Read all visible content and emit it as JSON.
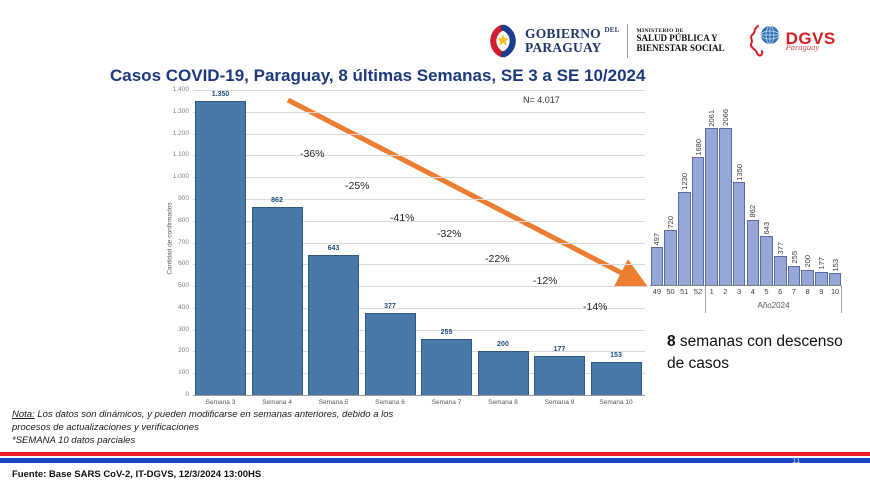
{
  "header": {
    "gobierno": {
      "line1": "GOBIERNO",
      "line1_suffix": "DEL",
      "line2": "PARAGUAY"
    },
    "ministerio": {
      "small": "MINISTERIO DE",
      "line1": "SALUD PÚBLICA Y",
      "line2": "BIENESTAR SOCIAL"
    },
    "dgvs": {
      "acronym": "DGVS",
      "script": "Paraguay"
    }
  },
  "title": "Casos COVID-19, Paraguay, 8 últimas Semanas, SE 3 a SE 10/2024",
  "chart_data": [
    {
      "type": "bar",
      "n_label": "N= 4.017",
      "ylabel": "Cantidad de confirmados",
      "categories": [
        "Semana 3",
        "Semana 4",
        "Semana 5",
        "Semana 6",
        "Semana 7",
        "Semana 8",
        "Semana 9",
        "Semana 10"
      ],
      "values": [
        1350,
        862,
        643,
        377,
        255,
        200,
        177,
        153
      ],
      "bar_labels": [
        "1.350",
        "862",
        "643",
        "377",
        "255",
        "200",
        "177",
        "153"
      ],
      "ylim": [
        0,
        1400
      ],
      "yticks": [
        "1.400",
        "1.300",
        "1.200",
        "1.100",
        "1.000",
        "900",
        "800",
        "700",
        "600",
        "500",
        "400",
        "300",
        "200",
        "100",
        "0"
      ],
      "grid": true,
      "pct_annotations": [
        "-36%",
        "-25%",
        "-41%",
        "-32%",
        "-22%",
        "-12%",
        "-14%"
      ],
      "trend_arrow": "down"
    },
    {
      "type": "bar",
      "categories": [
        "49",
        "50",
        "51",
        "52",
        "1",
        "2",
        "3",
        "4",
        "5",
        "6",
        "7",
        "8",
        "9",
        "10"
      ],
      "values": [
        497,
        720,
        1230,
        1680,
        2061,
        2066,
        1350,
        862,
        643,
        377,
        255,
        200,
        177,
        153
      ],
      "bar_labels": [
        "497",
        "720",
        "1230",
        "1680",
        "2061",
        "2066",
        "1350",
        "862",
        "643",
        "377",
        "255",
        "200",
        "177",
        "153"
      ],
      "xlabel": "Año2024",
      "ylim": [
        0,
        2100
      ],
      "grid": false
    }
  ],
  "annotation": {
    "bold": "8",
    "line1_rest": " semanas con descenso",
    "line2": "de casos"
  },
  "notes": {
    "label": "Nota:",
    "line1": " Los datos son dinámicos, y pueden modificarse en semanas anteriores, debido a los",
    "line2": "procesos de actualizaciones y verificaciones",
    "line3": "*SEMANA 10 datos parciales"
  },
  "footer": {
    "fuente": "Fuente: Base SARS CoV-2, IT-DGVS, 12/3/2024 13:00HS",
    "page": "11"
  },
  "colors": {
    "title_navy": "#1d3a7e",
    "bar_fill": "#4878a8",
    "bar_border": "#2e5a85",
    "mini_fill": "#97a6d9",
    "mini_border": "#5c6c9c",
    "arrow": "#ED7D31",
    "flag_red": "#ed1c24",
    "flag_blue": "#1848c4",
    "dgvs_red": "#d42027",
    "grid": "#d9d9d9"
  }
}
